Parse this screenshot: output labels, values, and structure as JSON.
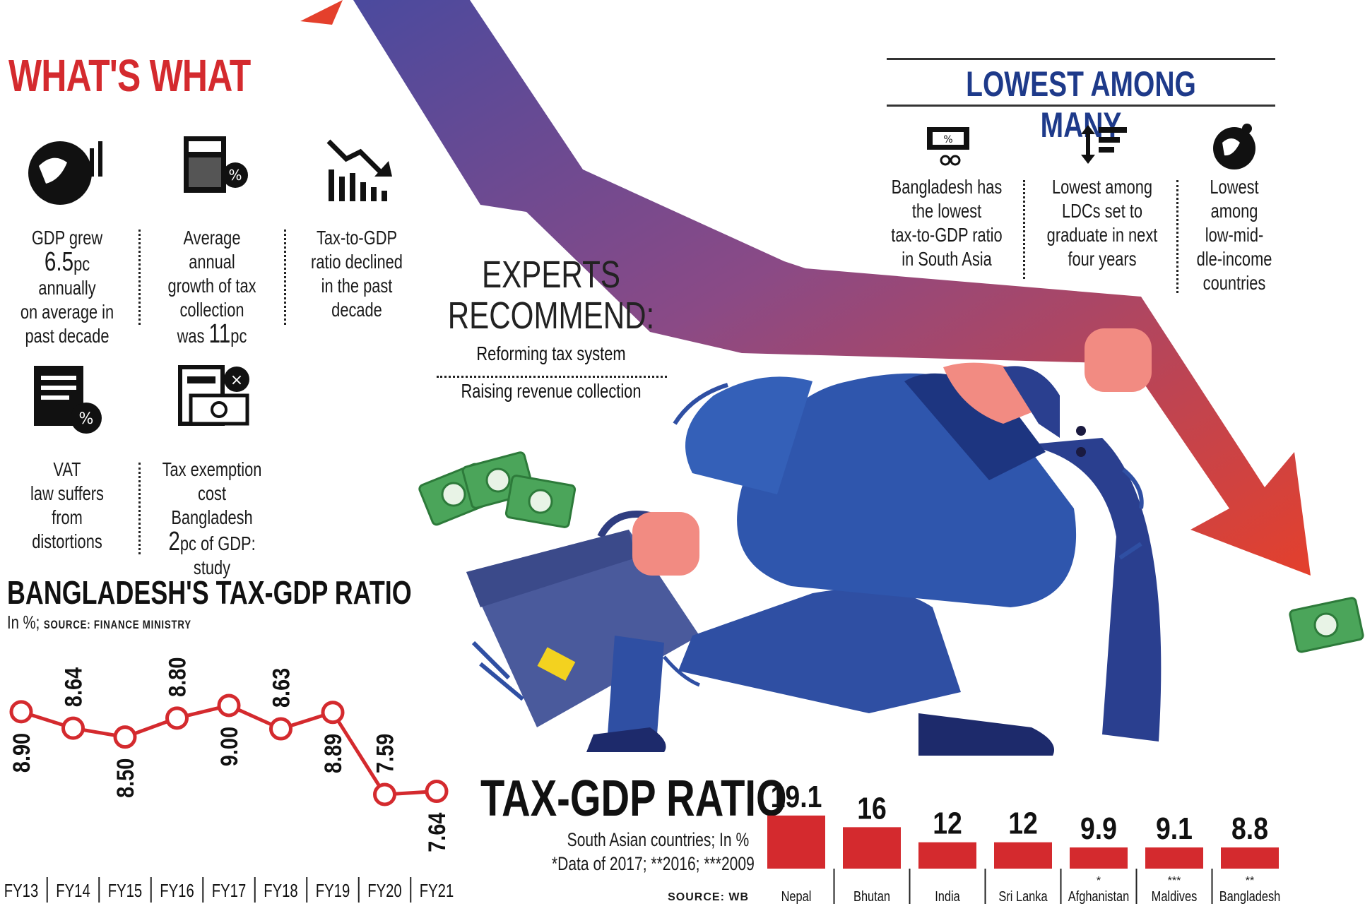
{
  "whats_what": {
    "title": "WHAT'S WHAT",
    "facts": [
      {
        "lines": [
          "GDP grew"
        ],
        "big": "6.5",
        "after": "pc annually",
        "rest": [
          "on average in",
          "past decade"
        ]
      },
      {
        "lines": [
          "Average annual",
          "growth of tax",
          "collection"
        ],
        "pre": "was ",
        "big": "11",
        "after": "pc",
        "rest": []
      },
      {
        "lines": [
          "Tax-to-GDP",
          "ratio declined",
          "in the past",
          "decade"
        ]
      },
      {
        "lines": [
          "VAT",
          "law suffers",
          "from",
          "distortions"
        ]
      },
      {
        "lines": [
          "Tax exemption",
          "cost Bangladesh"
        ],
        "big": "2",
        "after": "pc of GDP:",
        "rest": [
          "study"
        ]
      }
    ]
  },
  "experts": {
    "title_line1": "EXPERTS",
    "title_line2": "RECOMMEND:",
    "items": [
      "Reforming tax system",
      "Raising revenue collection"
    ]
  },
  "lowest_among_many": {
    "title": "LOWEST AMONG MANY",
    "items": [
      {
        "lines": [
          "Bangladesh has",
          "the lowest",
          "tax-to-GDP ratio",
          "in South Asia"
        ]
      },
      {
        "lines": [
          "Lowest among",
          "LDCs set to",
          "graduate in next",
          "four years"
        ]
      },
      {
        "lines": [
          "Lowest",
          "among",
          "low-mid-",
          "dle-income",
          "countries"
        ]
      }
    ]
  },
  "line_chart_header": {
    "title": "BANGLADESH'S TAX-GDP RATIO",
    "unit": "In %;",
    "source": "SOURCE: FINANCE MINISTRY"
  },
  "bar_chart_header": {
    "title": "TAX-GDP RATIO",
    "subtitle": "South Asian countries; In %",
    "note": "*Data of 2017; **2016; ***2009",
    "source": "SOURCE: WB"
  },
  "colors": {
    "red": "#d42a2e",
    "navy": "#1e3a8a",
    "suit": "#2f4fa3",
    "money": "#4ba55a"
  },
  "chart_data": [
    {
      "type": "line",
      "title": "BANGLADESH'S TAX-GDP RATIO",
      "ylabel": "In %",
      "categories": [
        "FY13",
        "FY14",
        "FY15",
        "FY16",
        "FY17",
        "FY18",
        "FY19",
        "FY20",
        "FY21"
      ],
      "values": [
        8.9,
        8.64,
        8.5,
        8.8,
        9.0,
        8.63,
        8.89,
        7.59,
        7.64
      ],
      "labels": [
        "8.90",
        "8.64",
        "8.50",
        "8.80",
        "9.00",
        "8.63",
        "8.89",
        "7.59",
        "7.64"
      ],
      "ylim": [
        7.4,
        9.1
      ]
    },
    {
      "type": "bar",
      "title": "TAX-GDP RATIO",
      "categories": [
        "Nepal",
        "Bhutan",
        "India",
        "Sri Lanka",
        "Afghanistan",
        "Maldives",
        "Bangladesh"
      ],
      "notes": [
        "",
        "",
        "",
        "",
        "*",
        "***",
        "**"
      ],
      "values": [
        19.1,
        16,
        12,
        12,
        9.9,
        9.1,
        8.8
      ],
      "labels": [
        "19.1",
        "16",
        "12",
        "12",
        "9.9",
        "9.1",
        "8.8"
      ],
      "ylim": [
        0,
        20
      ]
    }
  ]
}
